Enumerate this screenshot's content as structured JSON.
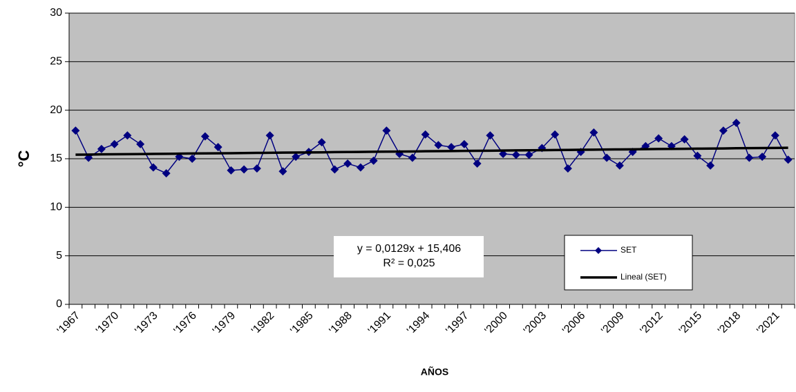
{
  "chart_data": {
    "type": "line",
    "x_label": "AÑOS",
    "y_label": "°C",
    "annotations": [
      "y = 0,0129x + 15,406",
      "R² = 0,025"
    ],
    "categories": [
      "'1967",
      null,
      null,
      "'1970",
      null,
      null,
      "'1973",
      null,
      null,
      "'1976",
      null,
      null,
      "'1979",
      null,
      null,
      "'1982",
      null,
      null,
      "'1985",
      null,
      null,
      "'1988",
      null,
      null,
      "'1991",
      null,
      null,
      "'1994",
      null,
      null,
      "'1997",
      null,
      null,
      "'2000",
      null,
      null,
      "'2003",
      null,
      null,
      "'2006",
      null,
      null,
      "'2009",
      null,
      null,
      "'2012",
      null,
      null,
      "'2015",
      null,
      null,
      "'2018",
      null,
      null,
      "'2021",
      null
    ],
    "series": [
      {
        "name": "SET",
        "color": "#000080",
        "marker": "diamond",
        "values": [
          17.9,
          15.1,
          16.0,
          16.5,
          17.4,
          16.5,
          14.1,
          13.5,
          15.2,
          15.0,
          17.3,
          16.2,
          13.8,
          13.9,
          14.0,
          17.4,
          13.7,
          15.2,
          15.7,
          16.7,
          13.9,
          14.5,
          14.1,
          14.8,
          17.9,
          15.5,
          15.1,
          17.5,
          16.4,
          16.2,
          16.5,
          14.5,
          17.4,
          15.5,
          15.4,
          15.4,
          16.1,
          17.5,
          14.0,
          15.7,
          17.7,
          15.1,
          14.3,
          15.7,
          16.3,
          17.1,
          16.3,
          17.0,
          15.3,
          14.3,
          17.9,
          18.7,
          15.1,
          15.2,
          17.4,
          14.9
        ]
      },
      {
        "name": "Lineal (SET)",
        "color": "#000000",
        "values": [
          15.42,
          15.43,
          15.45,
          15.46,
          15.47,
          15.48,
          15.5,
          15.51,
          15.52,
          15.54,
          15.55,
          15.56,
          15.57,
          15.59,
          15.6,
          15.61,
          15.63,
          15.64,
          15.65,
          15.66,
          15.68,
          15.69,
          15.7,
          15.72,
          15.73,
          15.74,
          15.75,
          15.77,
          15.78,
          15.79,
          15.81,
          15.82,
          15.83,
          15.84,
          15.86,
          15.87,
          15.88,
          15.9,
          15.91,
          15.92,
          15.93,
          15.95,
          15.96,
          15.97,
          15.99,
          16.0,
          16.01,
          16.02,
          16.04,
          16.05,
          16.06,
          16.08,
          16.09,
          16.1,
          16.11,
          16.13
        ]
      }
    ],
    "ylim": [
      0,
      30
    ],
    "yticks": [
      0,
      5,
      10,
      15,
      20,
      25,
      30
    ],
    "grid": true,
    "plot_background": "#c0c0c0"
  }
}
